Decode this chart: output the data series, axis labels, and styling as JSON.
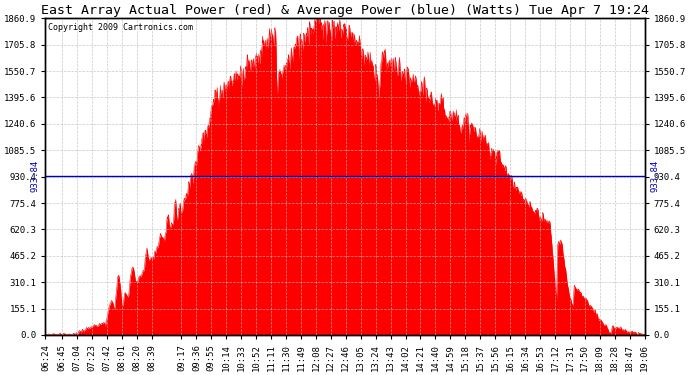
{
  "title": "East Array Actual Power (red) & Average Power (blue) (Watts) Tue Apr 7 19:24",
  "copyright": "Copyright 2009 Cartronics.com",
  "avg_power": 933.84,
  "y_max": 1860.9,
  "y_min": 0.0,
  "yticks": [
    0.0,
    155.1,
    310.1,
    465.2,
    620.3,
    775.4,
    930.4,
    1085.5,
    1240.6,
    1395.6,
    1550.7,
    1705.8,
    1860.9
  ],
  "x_labels": [
    "06:24",
    "06:45",
    "07:04",
    "07:23",
    "07:42",
    "08:01",
    "08:20",
    "08:39",
    "09:17",
    "09:36",
    "09:55",
    "10:14",
    "10:33",
    "10:52",
    "11:11",
    "11:30",
    "11:49",
    "12:08",
    "12:27",
    "12:46",
    "13:05",
    "13:24",
    "13:43",
    "14:02",
    "14:21",
    "14:40",
    "14:59",
    "15:18",
    "15:37",
    "15:56",
    "16:15",
    "16:34",
    "16:53",
    "17:12",
    "17:31",
    "17:50",
    "18:09",
    "18:28",
    "18:47",
    "19:06"
  ],
  "red_color": "#FF0000",
  "blue_color": "#0000BB",
  "bg_color": "#FFFFFF",
  "grid_color": "#BBBBBB",
  "title_fontsize": 9.5,
  "copyright_fontsize": 6,
  "tick_fontsize": 6.5
}
